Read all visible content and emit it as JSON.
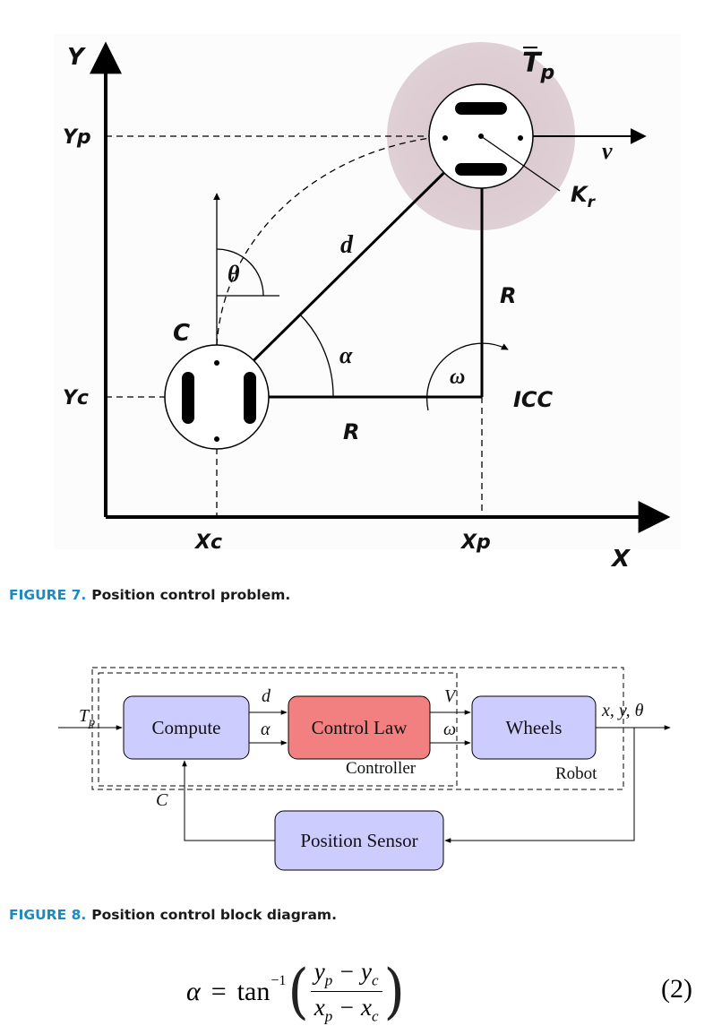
{
  "figure7": {
    "labels": {
      "y_axis": "Y",
      "x_axis": "X",
      "tp_main": "T",
      "tp_sub": "p",
      "yp": "Yp",
      "yc": "Yc",
      "xc": "Xc",
      "xp": "Xp",
      "v": "v",
      "kr_main": "K",
      "kr_sub": "r",
      "theta": "θ",
      "d": "d",
      "r_vertical": "R",
      "r_horizontal": "R",
      "c": "C",
      "alpha": "α",
      "omega": "ω",
      "icc": "ICC"
    },
    "caption": {
      "number": "FIGURE 7.",
      "text": "Position control problem."
    }
  },
  "figure8": {
    "blocks": {
      "compute": "Compute",
      "control_law": "Control Law",
      "wheels": "Wheels",
      "position_sensor": "Position Sensor"
    },
    "group_labels": {
      "controller": "Controller",
      "robot": "Robot"
    },
    "signals": {
      "tp": "T",
      "tp_sub": "p",
      "d": "d",
      "alpha": "α",
      "v": "V",
      "omega": "ω",
      "outputs": "x, y, θ",
      "c": "C"
    },
    "colors": {
      "blue_block": "#ccccff",
      "red_block": "#f28080"
    },
    "caption": {
      "number": "FIGURE 8.",
      "text": "Position control block diagram."
    }
  },
  "equation": {
    "lhs": "α",
    "equals": "=",
    "func": "tan",
    "superscript": "−1",
    "numerator": "y",
    "numerator_sub1": "p",
    "numerator_minus": " − y",
    "numerator_sub2": "c",
    "denominator": "x",
    "denominator_sub1": "p",
    "denominator_minus": " − x",
    "denominator_sub2": "c",
    "number": "(2)"
  }
}
